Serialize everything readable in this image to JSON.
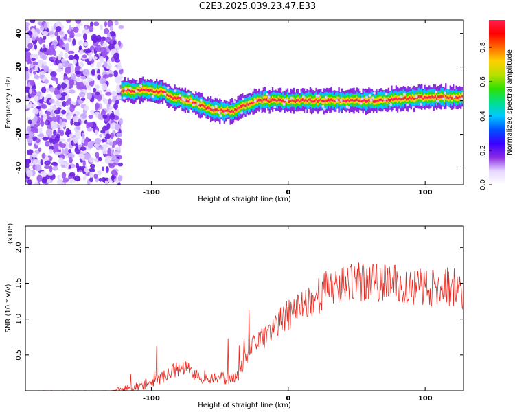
{
  "title": "C2E3.2025.039.23.47.E33",
  "colors": {
    "snr_line": "#e8281e",
    "axis": "#000000",
    "spectro_purple": "#7b2be0",
    "colorbar_stops": [
      "#ffffff",
      "#e6d6ff",
      "#8a2be2",
      "#3a00ff",
      "#0050ff",
      "#00c8ff",
      "#00e08a",
      "#30e000",
      "#b8e000",
      "#ffd000",
      "#ff6a00",
      "#ff0000",
      "#ff2050"
    ]
  },
  "chart_data": [
    {
      "type": "heatmap",
      "title": "C2E3.2025.039.23.47.E33",
      "xlabel": "Height of straight line (km)",
      "ylabel": "Frequency (Hz)",
      "xlim": [
        -192,
        128
      ],
      "ylim": [
        -50,
        48
      ],
      "x_ticks": [
        -100,
        0,
        100
      ],
      "y_ticks": [
        -40,
        -20,
        0,
        20,
        40
      ],
      "colorbar": {
        "label": "Normalized spectral amplitude",
        "range": [
          0.0,
          0.96
        ],
        "ticks": [
          "0.0",
          "0.2",
          "0.4",
          "0.6",
          "0.8"
        ]
      },
      "noise_region_x": [
        -192,
        -122
      ],
      "trace": {
        "x": [
          -122,
          -110,
          -100,
          -92,
          -85,
          -78,
          -70,
          -62,
          -55,
          -50,
          -45,
          -40,
          -35,
          -28,
          -20,
          -10,
          0,
          20,
          40,
          60,
          80,
          100,
          110,
          120,
          128
        ],
        "y": [
          6,
          6,
          6,
          5,
          2,
          1,
          -1,
          -4,
          -6,
          -6,
          -6,
          -6,
          -4,
          -1,
          0,
          0,
          0,
          0,
          0,
          0,
          1,
          2,
          2,
          2,
          2
        ]
      }
    },
    {
      "type": "line",
      "xlabel": "Height of straight line (km)",
      "ylabel": "SNR (10 * v/v)",
      "y_multiplier": "(x10⁴)",
      "xlim": [
        -192,
        128
      ],
      "ylim": [
        0.0,
        2.3
      ],
      "x_ticks": [
        -100,
        0,
        100
      ],
      "y_ticks": [
        0.5,
        1.0,
        1.5,
        2.0
      ],
      "series": [
        {
          "x": [
            -192,
            -130,
            -125,
            -120,
            -110,
            -100,
            -90,
            -85,
            -80,
            -75,
            -70,
            -65,
            -60,
            -55,
            -50,
            -45,
            -40,
            -37,
            -35,
            -32,
            -30,
            -27,
            -25,
            -20,
            -15,
            -10,
            -5,
            0,
            5,
            10,
            15,
            20,
            25,
            30,
            40,
            50,
            60,
            70,
            80,
            90,
            100,
            110,
            120,
            128
          ],
          "y": [
            0.0,
            0.0,
            0.01,
            0.01,
            0.05,
            0.12,
            0.2,
            0.28,
            0.3,
            0.33,
            0.25,
            0.18,
            0.2,
            0.17,
            0.18,
            0.17,
            0.16,
            0.2,
            0.3,
            0.42,
            0.5,
            0.6,
            0.65,
            0.72,
            0.8,
            0.9,
            0.98,
            1.05,
            1.12,
            1.2,
            1.25,
            1.3,
            1.38,
            1.45,
            1.5,
            1.52,
            1.5,
            1.5,
            1.48,
            1.47,
            1.45,
            1.45,
            1.45,
            1.4
          ]
        }
      ]
    }
  ]
}
